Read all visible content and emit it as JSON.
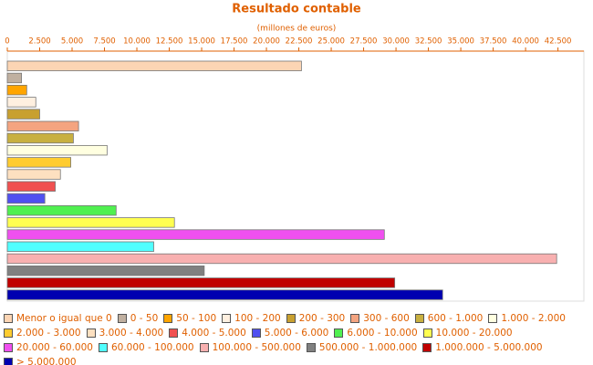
{
  "chart_data": {
    "type": "bar",
    "orientation": "horizontal",
    "title": "Resultado contable",
    "subtitle": "(millones de euros)",
    "categories": [
      "Menor o igual que 0",
      "0 - 50",
      "50 - 100",
      "100 - 200",
      "200 - 300",
      "300 - 600",
      "600 - 1.000",
      "1.000 - 2.000",
      "2.000 - 3.000",
      "3.000 - 4.000",
      "4.000 - 5.000",
      "5.000 - 6.000",
      "6.000 - 10.000",
      "10.000 - 20.000",
      "20.000 - 60.000",
      "60.000 - 100.000",
      "100.000 - 500.000",
      "500.000 - 1.000.000",
      "1.000.000 - 5.000.000",
      "> 5.000.000"
    ],
    "values": [
      22700,
      1100,
      1500,
      2200,
      2500,
      5500,
      5100,
      7700,
      4900,
      4100,
      3700,
      2900,
      8400,
      12900,
      29100,
      11300,
      42400,
      15200,
      29900,
      33600
    ],
    "colors": [
      "#fcd5b4",
      "#c0b0a0",
      "#ffa500",
      "#fff0e0",
      "#c8a030",
      "#f4a480",
      "#c8b040",
      "#ffffe0",
      "#ffcc30",
      "#fde0c0",
      "#f05050",
      "#5050f0",
      "#50f050",
      "#ffff50",
      "#f050f0",
      "#50ffff",
      "#f8b0b0",
      "#808080",
      "#c00000",
      "#0000b0"
    ],
    "xlim": [
      0,
      44500
    ],
    "xticks": [
      0,
      {
        "value": 2500,
        "label": "2.500"
      },
      {
        "value": 5000,
        "label": "5.000"
      },
      {
        "value": 7500,
        "label": "7.500"
      },
      {
        "value": 10000,
        "label": "10.000"
      },
      {
        "value": 12500,
        "label": "12.500"
      },
      {
        "value": 15000,
        "label": "15.000"
      },
      {
        "value": 17500,
        "label": "17.500"
      },
      {
        "value": 20000,
        "label": "20.000"
      },
      {
        "value": 22500,
        "label": "22.500"
      },
      {
        "value": 25000,
        "label": "25.000"
      },
      {
        "value": 27500,
        "label": "27.500"
      },
      {
        "value": 30000,
        "label": "30.000"
      },
      {
        "value": 32500,
        "label": "32.500"
      },
      {
        "value": 35000,
        "label": "35.000"
      },
      {
        "value": 37500,
        "label": "37.500"
      },
      {
        "value": 40000,
        "label": "40.000"
      },
      {
        "value": 42500,
        "label": "42.500"
      }
    ],
    "x_axis_position": "top",
    "legend": "bottom"
  }
}
